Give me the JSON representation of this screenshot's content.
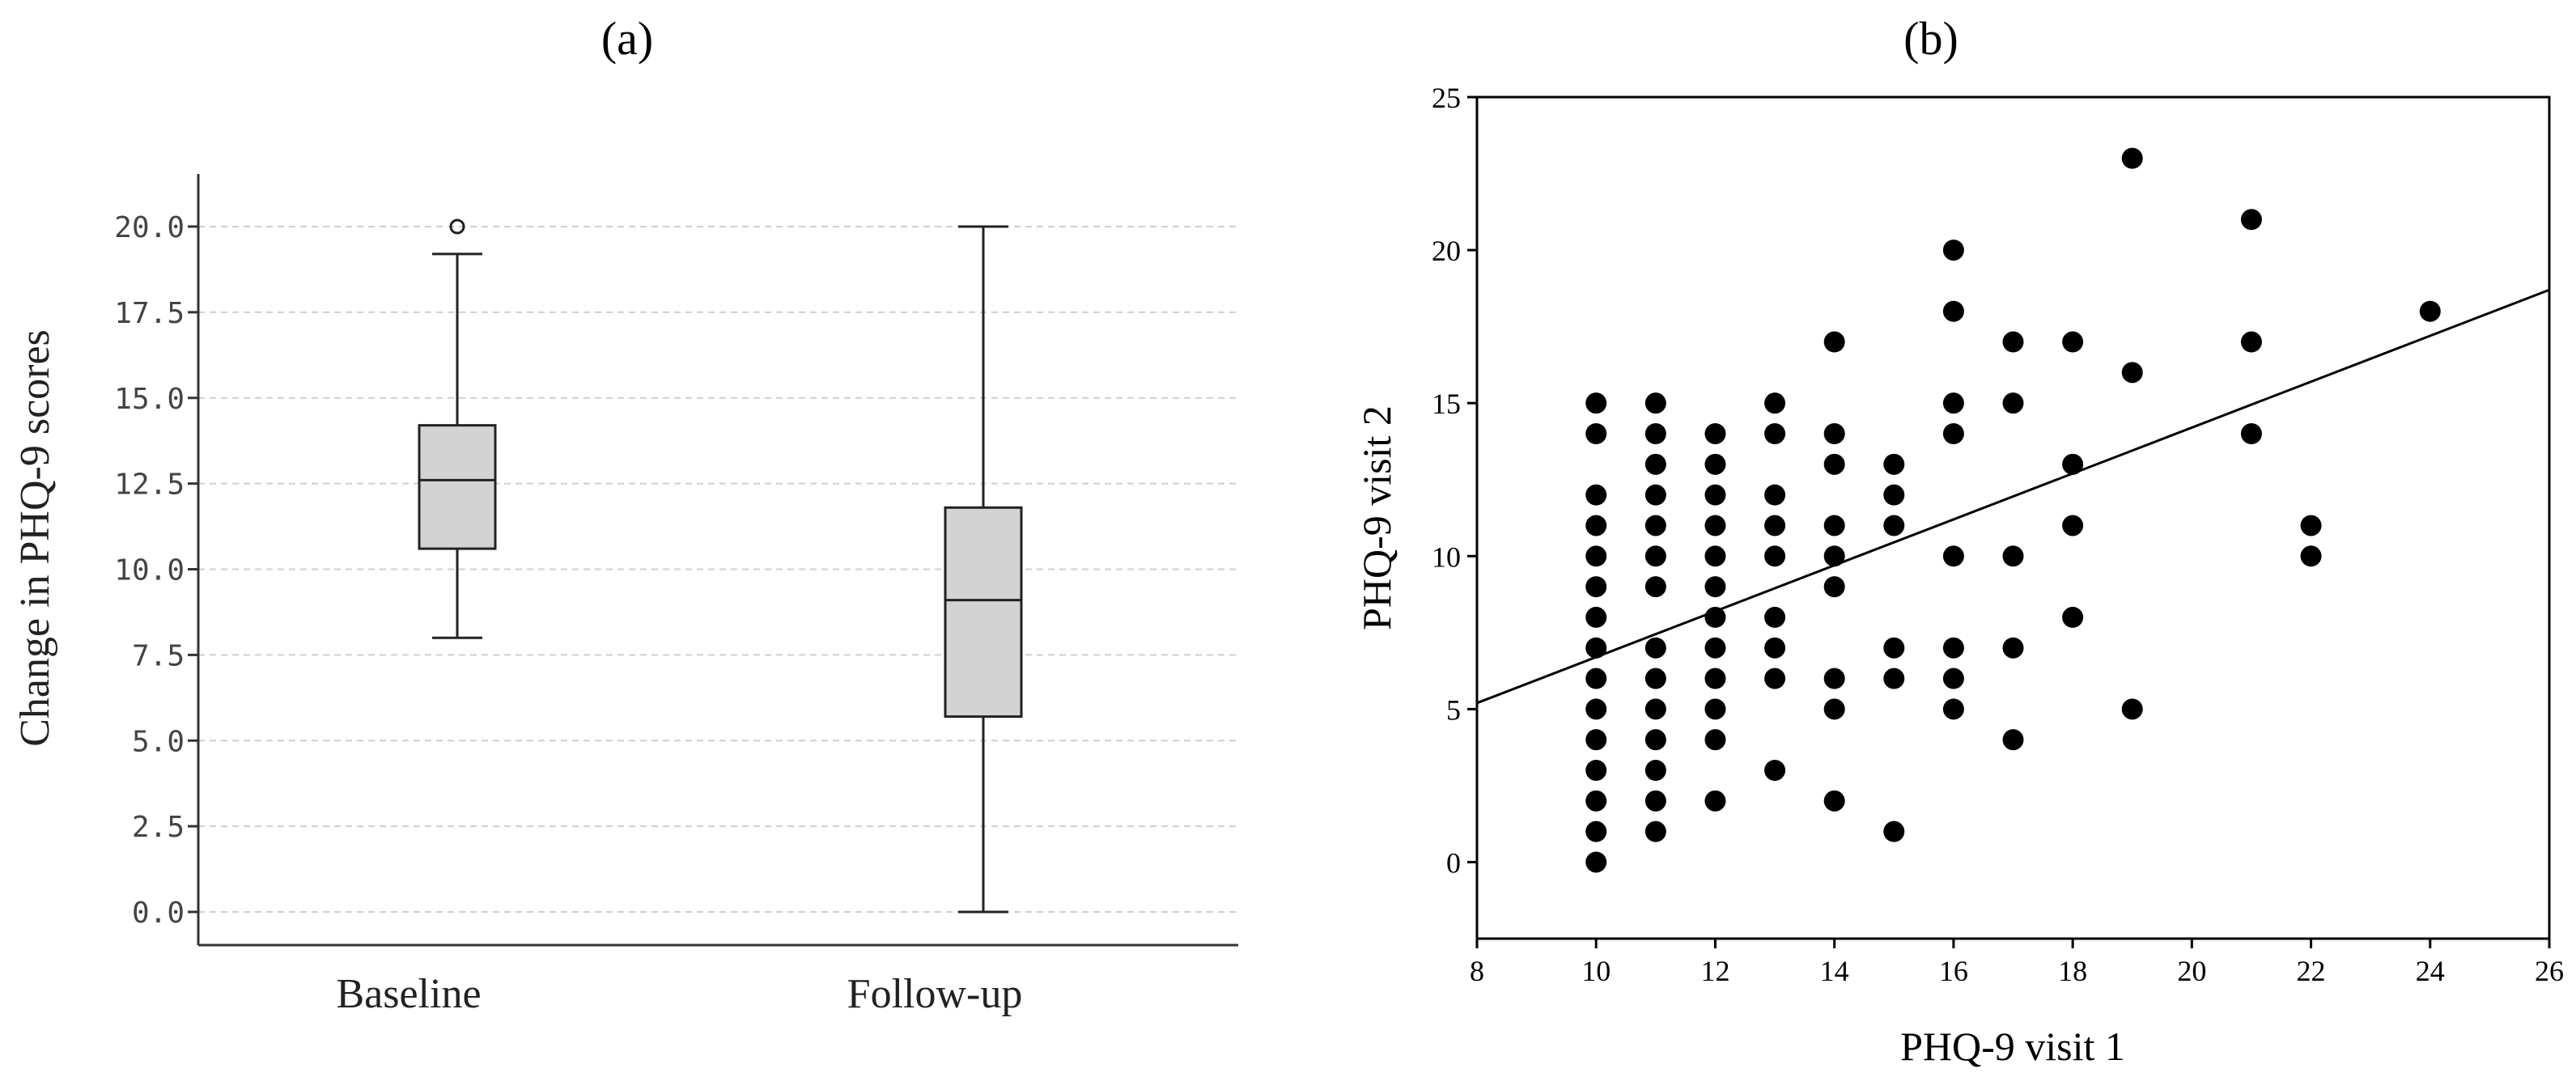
{
  "chart_data": [
    {
      "panel_label": "(a)",
      "type": "box",
      "ylabel": "Change in PHQ-9 scores",
      "ylim": [
        0,
        22.5
      ],
      "yticks": [
        "0.0",
        "2.5",
        "5.0",
        "7.5",
        "10.0",
        "12.5",
        "15.0",
        "17.5",
        "20.0"
      ],
      "ytick_values": [
        0,
        2.5,
        5,
        7.5,
        10,
        12.5,
        15,
        17.5,
        20
      ],
      "grid": "horizontal dashed",
      "categories": [
        "Baseline",
        "Follow-up"
      ],
      "boxes": [
        {
          "category": "Baseline",
          "whisker_low": 8.0,
          "q1": 10.6,
          "median": 12.6,
          "q3": 14.2,
          "whisker_high": 19.2,
          "outliers": [
            20.0
          ]
        },
        {
          "category": "Follow-up",
          "whisker_low": 0.0,
          "q1": 5.7,
          "median": 9.1,
          "q3": 11.8,
          "whisker_high": 20.0,
          "outliers": []
        }
      ],
      "box_color": "#d3d3d3"
    },
    {
      "panel_label": "(b)",
      "type": "scatter",
      "xlabel": "PHQ-9 visit 1",
      "ylabel": "PHQ-9 visit 2",
      "xlim": [
        8,
        26
      ],
      "ylim": [
        -2.5,
        25
      ],
      "xticks": [
        8,
        10,
        12,
        14,
        16,
        18,
        20,
        22,
        24,
        26
      ],
      "yticks": [
        0,
        5,
        10,
        15,
        20,
        25
      ],
      "points": [
        [
          10,
          15
        ],
        [
          10,
          14
        ],
        [
          10,
          12
        ],
        [
          10,
          11
        ],
        [
          10,
          10
        ],
        [
          10,
          9
        ],
        [
          10,
          8
        ],
        [
          10,
          7
        ],
        [
          10,
          6
        ],
        [
          10,
          5
        ],
        [
          10,
          4
        ],
        [
          10,
          3
        ],
        [
          10,
          2
        ],
        [
          10,
          1
        ],
        [
          10,
          0
        ],
        [
          11,
          15
        ],
        [
          11,
          14
        ],
        [
          11,
          13
        ],
        [
          11,
          12
        ],
        [
          11,
          11
        ],
        [
          11,
          10
        ],
        [
          11,
          9
        ],
        [
          11,
          7
        ],
        [
          11,
          6
        ],
        [
          11,
          5
        ],
        [
          11,
          4
        ],
        [
          11,
          3
        ],
        [
          11,
          2
        ],
        [
          11,
          1
        ],
        [
          12,
          14
        ],
        [
          12,
          13
        ],
        [
          12,
          12
        ],
        [
          12,
          11
        ],
        [
          12,
          10
        ],
        [
          12,
          9
        ],
        [
          12,
          8
        ],
        [
          12,
          7
        ],
        [
          12,
          6
        ],
        [
          12,
          5
        ],
        [
          12,
          4
        ],
        [
          12,
          2
        ],
        [
          13,
          15
        ],
        [
          13,
          14
        ],
        [
          13,
          12
        ],
        [
          13,
          11
        ],
        [
          13,
          10
        ],
        [
          13,
          8
        ],
        [
          13,
          7
        ],
        [
          13,
          6
        ],
        [
          13,
          3
        ],
        [
          14,
          17
        ],
        [
          14,
          14
        ],
        [
          14,
          13
        ],
        [
          14,
          11
        ],
        [
          14,
          10
        ],
        [
          14,
          9
        ],
        [
          14,
          6
        ],
        [
          14,
          5
        ],
        [
          14,
          2
        ],
        [
          15,
          13
        ],
        [
          15,
          12
        ],
        [
          15,
          11
        ],
        [
          15,
          7
        ],
        [
          15,
          6
        ],
        [
          15,
          1
        ],
        [
          16,
          20
        ],
        [
          16,
          18
        ],
        [
          16,
          15
        ],
        [
          16,
          14
        ],
        [
          16,
          10
        ],
        [
          16,
          7
        ],
        [
          16,
          6
        ],
        [
          16,
          5
        ],
        [
          17,
          17
        ],
        [
          17,
          15
        ],
        [
          17,
          10
        ],
        [
          17,
          7
        ],
        [
          17,
          4
        ],
        [
          18,
          17
        ],
        [
          18,
          13
        ],
        [
          18,
          11
        ],
        [
          18,
          8
        ],
        [
          19,
          23
        ],
        [
          19,
          16
        ],
        [
          19,
          5
        ],
        [
          21,
          21
        ],
        [
          21,
          17
        ],
        [
          21,
          14
        ],
        [
          22,
          11
        ],
        [
          22,
          10
        ],
        [
          24,
          18
        ]
      ],
      "fit_line": {
        "x": [
          8,
          26
        ],
        "y": [
          5.2,
          18.7
        ]
      }
    }
  ]
}
